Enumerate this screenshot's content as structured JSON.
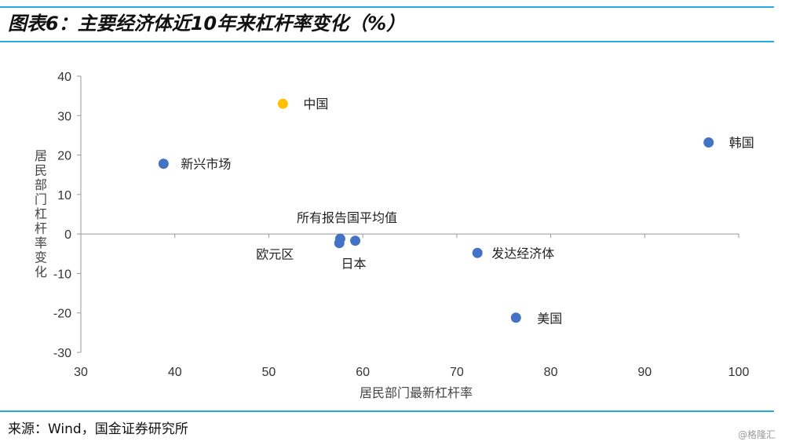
{
  "header": {
    "title": "图表6：主要经济体近10年来杠杆率变化（%）"
  },
  "footer": {
    "source": "来源：Wind，国金证券研究所",
    "watermark": "@格隆汇"
  },
  "colors": {
    "accent": "#27a9e1",
    "point": "#4472c4",
    "highlight": "#ffc000"
  },
  "chart_data": {
    "type": "scatter",
    "title": "",
    "xlabel": "居民部门最新杠杆率",
    "ylabel": "居民部门杠杆率变化",
    "xlim": [
      30,
      100
    ],
    "ylim": [
      -30,
      40
    ],
    "xticks": [
      "30",
      "40",
      "50",
      "60",
      "70",
      "80",
      "90",
      "100"
    ],
    "yticks": [
      "40",
      "30",
      "20",
      "10",
      "0",
      "-10",
      "-20",
      "-30"
    ],
    "points": [
      {
        "label": "中国",
        "x": 51.5,
        "y": 33.0,
        "color": "#ffc000"
      },
      {
        "label": "韩国",
        "x": 96.8,
        "y": 23.2,
        "color": "#4472c4"
      },
      {
        "label": "新兴市场",
        "x": 38.8,
        "y": 17.8,
        "color": "#4472c4"
      },
      {
        "label": "",
        "x": 57.6,
        "y": -1.2,
        "color": "#4472c4"
      },
      {
        "label": "欧元区",
        "x": 57.5,
        "y": -2.3,
        "color": "#4472c4"
      },
      {
        "label": "日本",
        "x": 59.2,
        "y": -1.7,
        "color": "#4472c4"
      },
      {
        "label": "发达经济体",
        "x": 72.2,
        "y": -4.8,
        "color": "#4472c4"
      },
      {
        "label": "美国",
        "x": 76.3,
        "y": -21.2,
        "color": "#4472c4"
      }
    ],
    "annotations": [
      {
        "text": "所有报告国平均值"
      }
    ]
  }
}
